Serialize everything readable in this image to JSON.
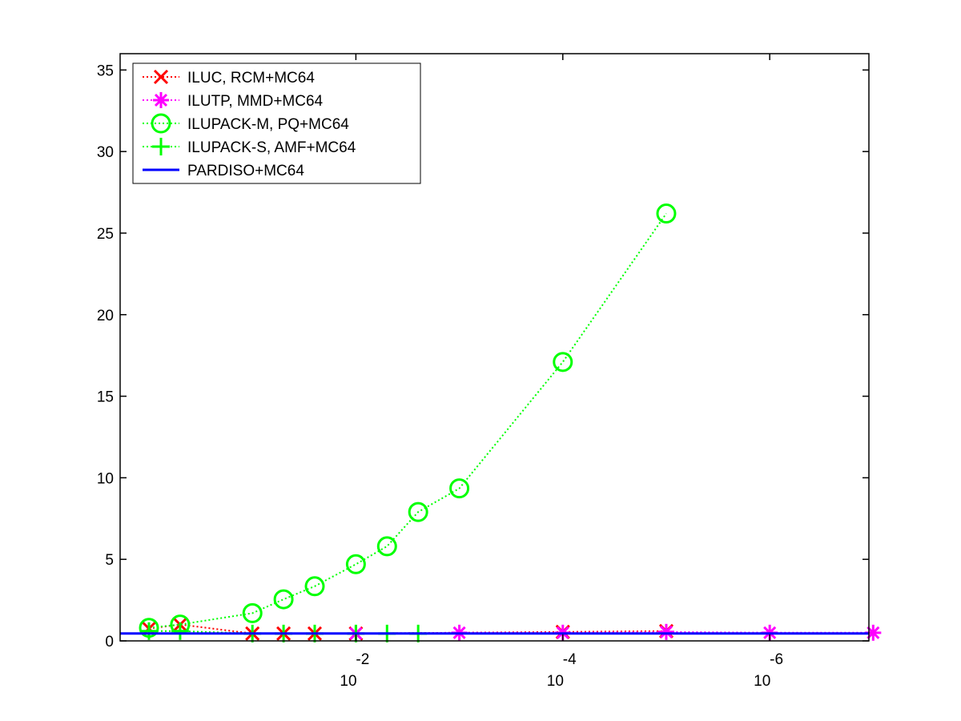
{
  "chart_data": {
    "type": "line",
    "title": "",
    "xlabel": "",
    "ylabel": "",
    "x_scale": "log",
    "x_reversed": true,
    "xlim": [
      1.9,
      1.1e-07
    ],
    "ylim": [
      0,
      36
    ],
    "x_ticks": [
      {
        "value": 0.01,
        "base": "10",
        "exponent": "-2"
      },
      {
        "value": 0.0001,
        "base": "10",
        "exponent": "-4"
      },
      {
        "value": 1e-06,
        "base": "10",
        "exponent": "-6"
      }
    ],
    "y_ticks": [
      {
        "value": 0,
        "label": "0"
      },
      {
        "value": 5,
        "label": "5"
      },
      {
        "value": 10,
        "label": "10"
      },
      {
        "value": 15,
        "label": "15"
      },
      {
        "value": 20,
        "label": "20"
      },
      {
        "value": 25,
        "label": "25"
      },
      {
        "value": 30,
        "label": "30"
      },
      {
        "value": 35,
        "label": "35"
      }
    ],
    "grid": false,
    "legend_position": "top-left",
    "series": [
      {
        "name": "ILUC, RCM+MC64",
        "color": "#ff0000",
        "line": "dotted",
        "marker": "x",
        "x": [
          1,
          0.5,
          0.1,
          0.05,
          0.025,
          0.01,
          0.0001,
          1e-05
        ],
        "y": [
          0.75,
          1.0,
          0.45,
          0.45,
          0.45,
          0.45,
          0.55,
          0.6
        ]
      },
      {
        "name": "ILUTP, MMD+MC64",
        "color": "#ff00ff",
        "line": "dotted",
        "marker": "asterisk",
        "x": [
          0.01,
          0.001,
          0.0001,
          1e-05,
          1e-06,
          1e-07
        ],
        "y": [
          0.45,
          0.5,
          0.5,
          0.55,
          0.5,
          0.5
        ]
      },
      {
        "name": "ILUPACK-M, PQ+MC64",
        "color": "#00ff00",
        "line": "dotted",
        "marker": "circle",
        "x": [
          1,
          0.5,
          0.1,
          0.05,
          0.025,
          0.01,
          0.005,
          0.0025,
          0.001,
          0.0001,
          1e-05
        ],
        "y": [
          0.8,
          1.0,
          1.7,
          2.55,
          3.35,
          4.7,
          5.8,
          7.9,
          9.35,
          17.1,
          26.2
        ]
      },
      {
        "name": "ILUPACK-S, AMF+MC64",
        "color": "#00ff00",
        "line": "dotted",
        "marker": "plus",
        "x": [
          1,
          0.5,
          0.1,
          0.05,
          0.025,
          0.01,
          0.005,
          0.0025
        ],
        "y": [
          0.6,
          0.6,
          0.45,
          0.45,
          0.45,
          0.45,
          0.45,
          0.45
        ]
      },
      {
        "name": "PARDISO+MC64",
        "color": "#0000ff",
        "line": "solid",
        "marker": "none",
        "x": [
          1.9,
          1.1e-07
        ],
        "y": [
          0.45,
          0.45
        ]
      }
    ]
  }
}
